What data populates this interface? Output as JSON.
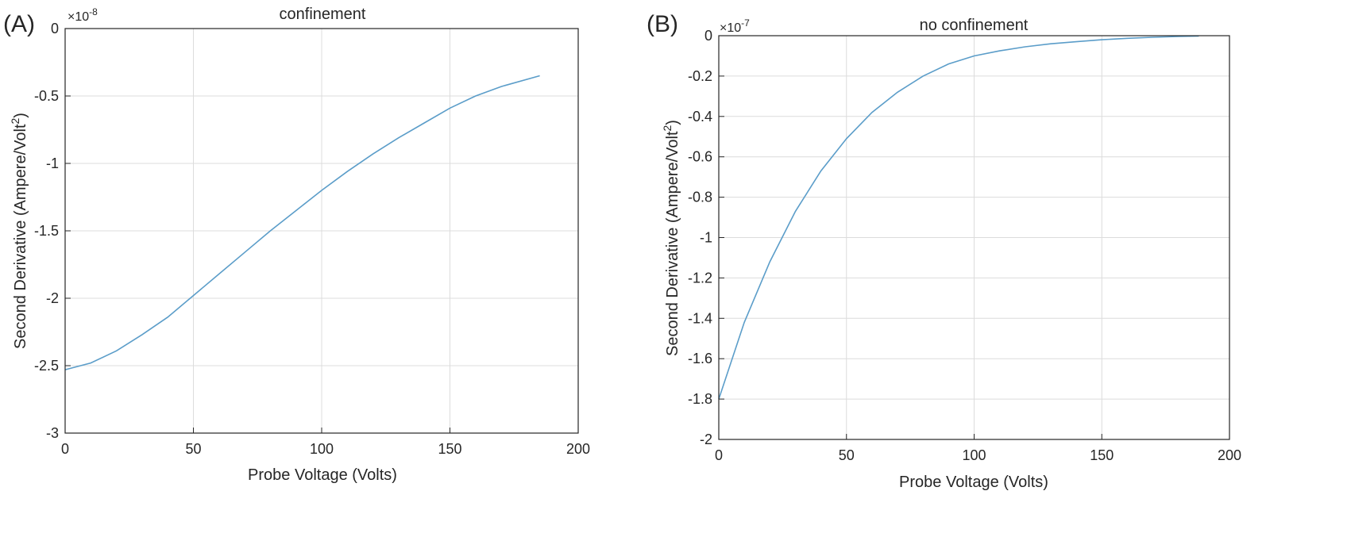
{
  "chart_data": [
    {
      "type": "line",
      "panel_label": "(A)",
      "title": "confinement",
      "xlabel": "Probe Voltage (Volts)",
      "ylabel_text": "Second Derivative (Ampere/Volt",
      "ylabel_sup": "2",
      "ylabel_close": ")",
      "exponent_base": "×10",
      "exponent_power": "-8",
      "xlim": [
        0,
        200
      ],
      "ylim": [
        -3,
        0
      ],
      "xticks": [
        0,
        50,
        100,
        150,
        200
      ],
      "xtick_labels": [
        "0",
        "50",
        "100",
        "150",
        "200"
      ],
      "yticks": [
        0,
        -0.5,
        -1,
        -1.5,
        -2,
        -2.5,
        -3
      ],
      "ytick_labels": [
        "0",
        "-0.5",
        "-1",
        "-1.5",
        "-2",
        "-2.5",
        "-3"
      ],
      "grid": true,
      "line_color": "#5b9dc9",
      "series": [
        {
          "x": [
            0,
            10,
            20,
            30,
            40,
            50,
            60,
            70,
            80,
            90,
            100,
            110,
            120,
            130,
            140,
            150,
            160,
            170,
            185
          ],
          "y": [
            -2.53,
            -2.48,
            -2.39,
            -2.27,
            -2.14,
            -1.98,
            -1.82,
            -1.66,
            -1.5,
            -1.35,
            -1.2,
            -1.06,
            -0.93,
            -0.81,
            -0.7,
            -0.59,
            -0.5,
            -0.43,
            -0.35
          ]
        }
      ]
    },
    {
      "type": "line",
      "panel_label": "(B)",
      "title": "no confinement",
      "xlabel": "Probe Voltage (Volts)",
      "ylabel_text": "Second Derivative (Ampere/Volt",
      "ylabel_sup": "2",
      "ylabel_close": ")",
      "exponent_base": "×10",
      "exponent_power": "-7",
      "xlim": [
        0,
        200
      ],
      "ylim": [
        -2,
        0
      ],
      "xticks": [
        0,
        50,
        100,
        150,
        200
      ],
      "xtick_labels": [
        "0",
        "50",
        "100",
        "150",
        "200"
      ],
      "yticks": [
        0,
        -0.2,
        -0.4,
        -0.6,
        -0.8,
        -1,
        -1.2,
        -1.4,
        -1.6,
        -1.8,
        -2
      ],
      "ytick_labels": [
        "0",
        "-0.2",
        "-0.4",
        "-0.6",
        "-0.8",
        "-1",
        "-1.2",
        "-1.4",
        "-1.6",
        "-1.8",
        "-2"
      ],
      "grid": true,
      "line_color": "#5b9dc9",
      "series": [
        {
          "x": [
            0,
            10,
            20,
            30,
            40,
            50,
            60,
            70,
            80,
            90,
            100,
            110,
            120,
            130,
            140,
            150,
            160,
            170,
            180,
            188
          ],
          "y": [
            -1.8,
            -1.42,
            -1.12,
            -0.87,
            -0.67,
            -0.51,
            -0.38,
            -0.28,
            -0.2,
            -0.14,
            -0.1,
            -0.075,
            -0.055,
            -0.04,
            -0.03,
            -0.02,
            -0.013,
            -0.008,
            -0.004,
            -0.002
          ]
        }
      ]
    }
  ]
}
